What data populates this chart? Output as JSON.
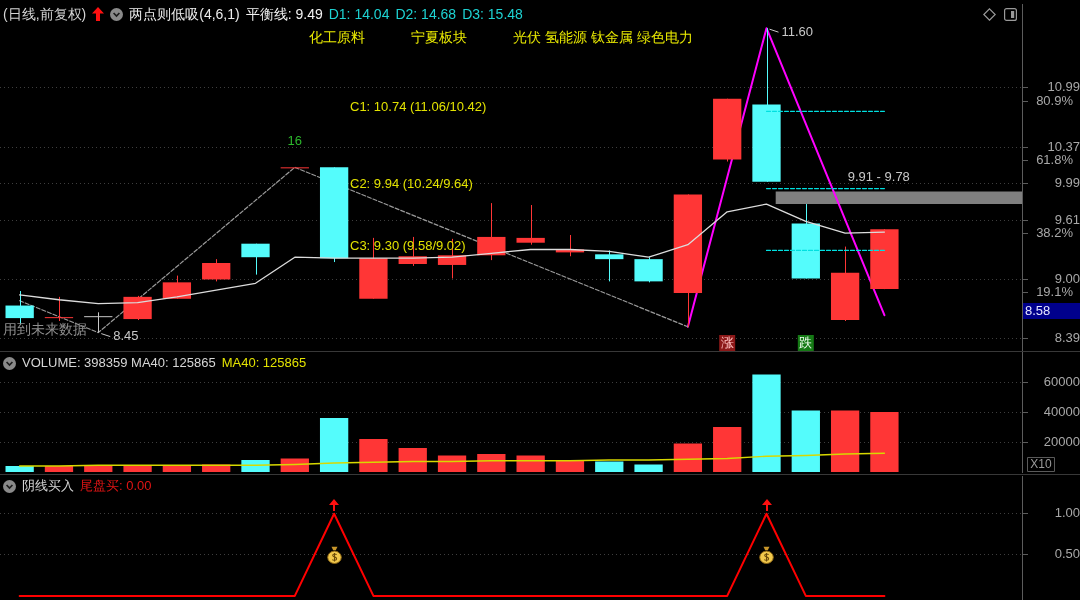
{
  "chart_data": [
    {
      "type": "candlestick",
      "title": "(日线,前复权)",
      "subtitle": "两点则低吸(4,6,1)",
      "categories": [
        null,
        null,
        null,
        null,
        null,
        null,
        null,
        null,
        null,
        null,
        null,
        null,
        null,
        null,
        null,
        null,
        null,
        null,
        null,
        null,
        null,
        null,
        null,
        null,
        null,
        null
      ],
      "ohlc": [
        [
          8.73,
          8.88,
          8.53,
          8.6
        ],
        [
          8.6,
          8.82,
          8.57,
          8.61
        ],
        [
          8.62,
          8.66,
          8.45,
          8.62
        ],
        [
          8.59,
          8.83,
          8.58,
          8.82
        ],
        [
          8.8,
          9.04,
          8.8,
          8.97
        ],
        [
          9.0,
          9.21,
          8.98,
          9.17
        ],
        [
          9.37,
          9.37,
          9.05,
          9.23
        ],
        [
          10.16,
          10.16,
          10.16,
          10.16
        ],
        [
          10.16,
          10.16,
          9.18,
          9.22
        ],
        [
          8.8,
          9.43,
          8.8,
          9.22
        ],
        [
          9.16,
          9.44,
          9.14,
          9.24
        ],
        [
          9.15,
          9.42,
          9.01,
          9.25
        ],
        [
          9.25,
          9.79,
          9.2,
          9.44
        ],
        [
          9.38,
          9.77,
          9.36,
          9.43
        ],
        [
          9.28,
          9.46,
          9.24,
          9.31
        ],
        [
          9.26,
          9.3,
          8.98,
          9.21
        ],
        [
          9.21,
          9.23,
          8.97,
          8.98
        ],
        [
          8.86,
          9.88,
          8.51,
          9.88
        ],
        [
          10.24,
          10.87,
          10.22,
          10.87
        ],
        [
          10.81,
          11.6,
          10.01,
          10.01
        ],
        [
          9.58,
          9.78,
          9.01,
          9.01
        ],
        [
          8.58,
          9.34,
          8.57,
          9.07
        ],
        [
          8.9,
          9.52,
          8.9,
          9.52
        ],
        null,
        null,
        null
      ],
      "colors": [
        "#54fcfc",
        "#ff3636",
        "#c8c8c8",
        "#ff3636",
        "#ff3636",
        "#ff3636",
        "#54fcfc",
        "#ff3636",
        "#54fcfc",
        "#ff3636",
        "#ff3636",
        "#ff3636",
        "#ff3636",
        "#ff3636",
        "#ff3636",
        "#54fcfc",
        "#54fcfc",
        "#ff3636",
        "#ff3636",
        "#54fcfc",
        "#54fcfc",
        "#ff3636",
        "#ff3636",
        null,
        null,
        null
      ],
      "series": [
        {
          "type": "line",
          "color": "#dcdcdc",
          "values": [
            8.84,
            8.79,
            8.75,
            8.76,
            8.82,
            8.89,
            8.96,
            9.23,
            9.22,
            9.22,
            9.22,
            9.23,
            9.27,
            9.31,
            9.31,
            9.29,
            9.23,
            9.36,
            9.7,
            9.78,
            9.6,
            9.48,
            9.49,
            null,
            null,
            null
          ]
        },
        {
          "type": "line",
          "color": "#9a9a9a",
          "line_style": "dashed",
          "values": [
            8.78,
            null,
            8.45,
            null,
            null,
            null,
            null,
            10.16,
            null,
            null,
            null,
            null,
            null,
            null,
            null,
            null,
            null,
            8.51,
            null,
            null,
            null,
            null,
            null,
            null,
            null,
            null
          ],
          "value_labels": [
            null,
            null,
            "8.45",
            null,
            null,
            null,
            null,
            null,
            null,
            null,
            null,
            null,
            null,
            null,
            null,
            null,
            null,
            null,
            null,
            null,
            null,
            null,
            null,
            null,
            null,
            null
          ]
        },
        {
          "type": "line",
          "color": "#ff00ff",
          "values": [
            null,
            null,
            null,
            null,
            null,
            null,
            null,
            null,
            null,
            null,
            null,
            null,
            null,
            null,
            null,
            null,
            null,
            8.51,
            null,
            11.6,
            null,
            null,
            8.63,
            null,
            null,
            null
          ],
          "value_labels": [
            null,
            null,
            null,
            null,
            null,
            null,
            null,
            null,
            null,
            null,
            null,
            null,
            null,
            null,
            null,
            null,
            null,
            null,
            null,
            "11.60",
            null,
            null,
            null,
            null,
            null,
            null
          ]
        },
        {
          "type": "line",
          "color": "#00e0e0",
          "line_style": "dashed",
          "values": [
            null,
            null,
            null,
            null,
            null,
            null,
            null,
            null,
            null,
            null,
            null,
            null,
            null,
            null,
            null,
            null,
            null,
            null,
            null,
            10.74,
            10.74,
            10.74,
            10.74,
            null,
            null,
            null
          ]
        },
        {
          "type": "line",
          "color": "#00e0e0",
          "line_style": "dashed",
          "values": [
            null,
            null,
            null,
            null,
            null,
            null,
            null,
            null,
            null,
            null,
            null,
            null,
            null,
            null,
            null,
            null,
            null,
            null,
            null,
            9.94,
            9.94,
            9.94,
            9.94,
            null,
            null,
            null
          ]
        },
        {
          "type": "line",
          "color": "#00e0e0",
          "line_style": "dashed",
          "values": [
            null,
            null,
            null,
            null,
            null,
            null,
            null,
            null,
            null,
            null,
            null,
            null,
            null,
            null,
            null,
            null,
            null,
            null,
            null,
            9.3,
            9.3,
            9.3,
            9.3,
            null,
            null,
            null
          ]
        }
      ],
      "bands": [
        {
          "axis": "y",
          "from": 9.78,
          "to": 9.91,
          "label": "9.91 - 9.78",
          "color": "#808080"
        }
      ],
      "ylim": [
        8.27,
        11.85
      ],
      "yticks": [
        8.39,
        {
          "value": 9,
          "label": "9.00"
        },
        9.61,
        9.99,
        10.37,
        10.99
      ],
      "y2lim": [
        0.5,
        112.2
      ],
      "y2ticks": [
        {
          "value": 19.1,
          "label": "19.1%"
        },
        {
          "value": 38.2,
          "label": "38.2%"
        },
        {
          "value": 61.8,
          "label": "61.8%"
        },
        {
          "value": 80.9,
          "label": "80.9%"
        }
      ],
      "grid": "y",
      "tick_labels": "y",
      "annotations": [
        "平衡线: 9.49",
        "D1: 14.04",
        "D2: 14.68",
        "D3: 15.48",
        "化工原料",
        "宁夏板块",
        "光伏 氢能源 钛金属 绿色电力",
        "C1: 10.74 (11.06/10.42)",
        "C2: 9.94 (10.24/9.64)",
        "C3: 9.30 (9.58/9.02)",
        "16",
        "用到未来数据",
        "涨",
        "跌",
        "8.58"
      ]
    },
    {
      "type": "bar",
      "categories": [
        null,
        null,
        null,
        null,
        null,
        null,
        null,
        null,
        null,
        null,
        null,
        null,
        null,
        null,
        null,
        null,
        null,
        null,
        null,
        null,
        null,
        null,
        null,
        null,
        null,
        null
      ],
      "series": [
        {
          "type": "bar",
          "colors": [
            "#54fcfc",
            "#ff3636",
            "#ff3636",
            "#ff3636",
            "#ff3636",
            "#ff3636",
            "#54fcfc",
            "#ff3636",
            "#54fcfc",
            "#ff3636",
            "#ff3636",
            "#ff3636",
            "#ff3636",
            "#ff3636",
            "#ff3636",
            "#54fcfc",
            "#54fcfc",
            "#ff3636",
            "#ff3636",
            "#54fcfc",
            "#54fcfc",
            "#ff3636",
            "#ff3636",
            null,
            null,
            null
          ],
          "values": [
            4000,
            4000,
            4000,
            4000,
            4000,
            5000,
            8000,
            9000,
            36000,
            22000,
            16000,
            11000,
            12000,
            11000,
            8000,
            7000,
            5000,
            19000,
            30000,
            65000,
            41000,
            41000,
            40000,
            null,
            null,
            null
          ]
        },
        {
          "type": "line",
          "color": "#d8d800",
          "values": [
            4000,
            4000,
            4500,
            4500,
            4500,
            4500,
            4500,
            5000,
            6000,
            6500,
            7000,
            7000,
            7500,
            7500,
            7500,
            8000,
            8000,
            8500,
            9000,
            10500,
            11000,
            12000,
            12500,
            null,
            null,
            null
          ]
        }
      ],
      "ylim": [
        0,
        80000
      ],
      "yticks": [
        20000,
        40000,
        60000
      ],
      "grid": "y",
      "tick_labels": "y",
      "annotations": [
        "VOLUME: 398359 MA40: 125865",
        "MA40: 125865",
        "X10"
      ]
    },
    {
      "type": "line",
      "title": "阴线买入",
      "categories": [
        null,
        null,
        null,
        null,
        null,
        null,
        null,
        null,
        null,
        null,
        null,
        null,
        null,
        null,
        null,
        null,
        null,
        null,
        null,
        null,
        null,
        null,
        null,
        null,
        null,
        null
      ],
      "series": [
        {
          "color": "#ff0000",
          "values": [
            0,
            0,
            0,
            0,
            0,
            0,
            0,
            0,
            1,
            0,
            0,
            0,
            0,
            0,
            0,
            0,
            0,
            0,
            0,
            1,
            0,
            0,
            0,
            null,
            null,
            null
          ]
        }
      ],
      "ylim": [
        -0.05,
        1.46
      ],
      "yticks": [
        {
          "value": 0.5,
          "label": "0.50"
        },
        {
          "value": 1,
          "label": "1.00"
        }
      ],
      "grid": "y",
      "tick_labels": "y",
      "annotations": [
        "尾盘买: 0.00"
      ]
    }
  ]
}
